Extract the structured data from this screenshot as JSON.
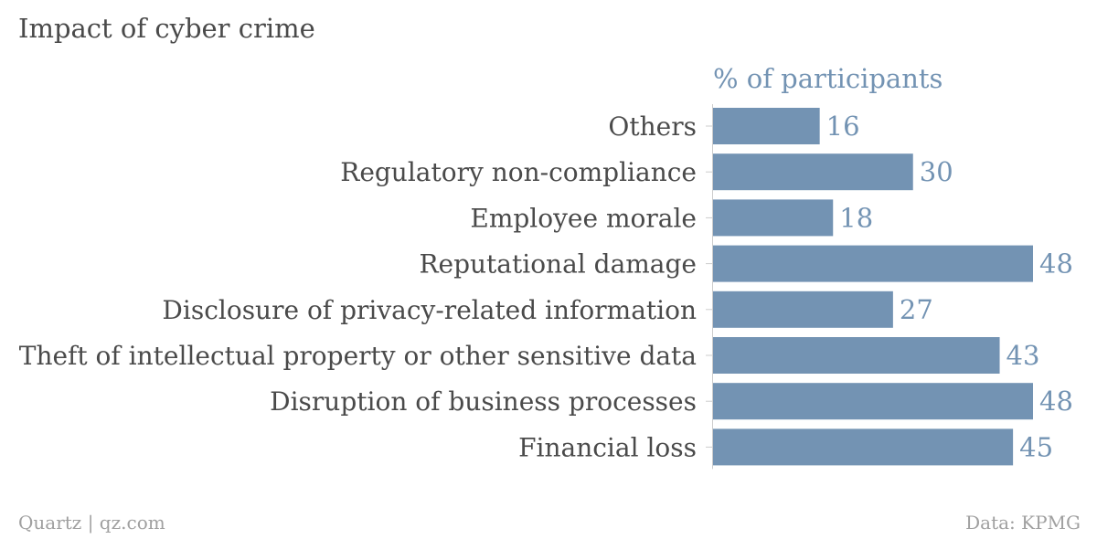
{
  "chart_data": {
    "type": "bar",
    "orientation": "horizontal",
    "title": "Impact of cyber crime",
    "unit_label": "% of participants",
    "categories": [
      "Others",
      "Regulatory non-compliance",
      "Employee morale",
      "Reputational damage",
      "Disclosure of privacy-related information",
      "Theft of intellectual property or other sensitive data",
      "Disruption of business processes",
      "Financial loss"
    ],
    "values": [
      16,
      30,
      18,
      48,
      27,
      43,
      48,
      45
    ],
    "xlim": [
      0,
      48
    ],
    "grid": false,
    "legend": "none",
    "colors": {
      "bar": "#7393b3",
      "value_text": "#7393b3",
      "unit_text": "#7393b3",
      "text": "#4a4a4a",
      "axis": "#cccccc",
      "footer": "#a0a0a0"
    }
  },
  "footer": {
    "source_left": "Quartz | qz.com",
    "source_right": "Data: KPMG"
  }
}
